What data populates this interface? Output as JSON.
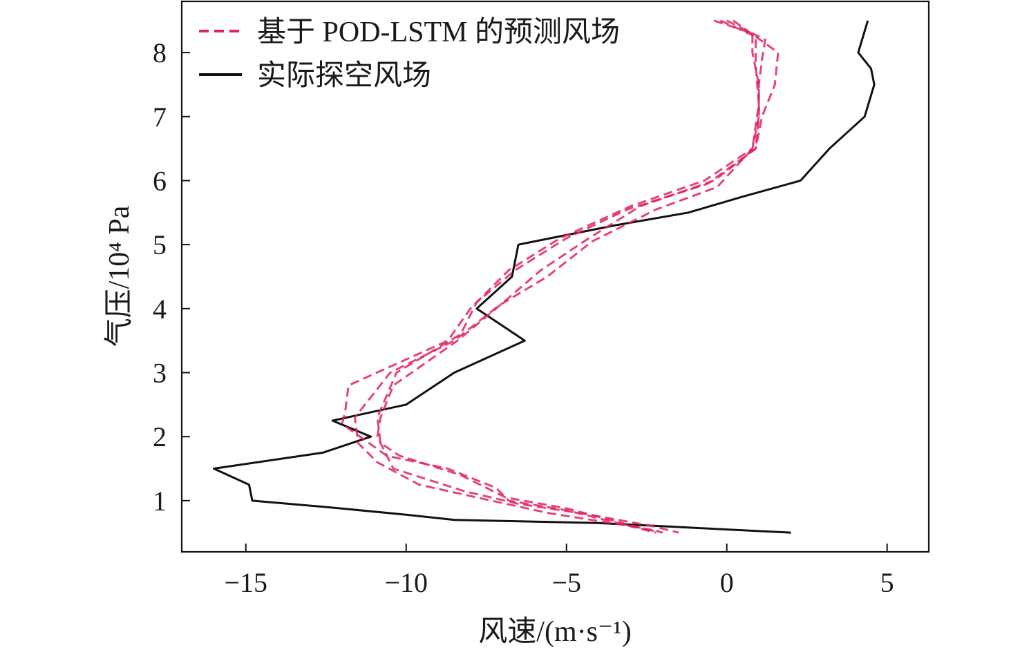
{
  "chart_data": {
    "type": "line",
    "xlabel": "风速/(m·s⁻¹)",
    "ylabel": "气压/10⁴ Pa",
    "xlim": [
      -17,
      6.3
    ],
    "ylim": [
      0.2,
      8.8
    ],
    "xticks": [
      -15,
      -10,
      -5,
      0,
      5
    ],
    "xtick_labels": [
      "−15",
      "−10",
      "−5",
      "0",
      "5"
    ],
    "yticks": [
      1,
      2,
      3,
      4,
      5,
      6,
      7,
      8
    ],
    "ytick_labels": [
      "1",
      "2",
      "3",
      "4",
      "5",
      "6",
      "7",
      "8"
    ],
    "grid": false,
    "legend_position": "top-left",
    "legend": [
      {
        "label": "基于 POD-LSTM 的预测风场",
        "style": "dashed",
        "color": "#e0245e"
      },
      {
        "label": "实际探空风场",
        "style": "solid",
        "color": "#111111"
      }
    ],
    "series": [
      {
        "name": "实际探空风场",
        "style": "solid",
        "color": "#111111",
        "points": [
          [
            4.4,
            8.5
          ],
          [
            4.1,
            8.0
          ],
          [
            4.5,
            7.75
          ],
          [
            4.6,
            7.5
          ],
          [
            4.3,
            7.0
          ],
          [
            3.2,
            6.5
          ],
          [
            2.3,
            6.0
          ],
          [
            0.5,
            5.75
          ],
          [
            -1.2,
            5.5
          ],
          [
            -3.5,
            5.3
          ],
          [
            -6.5,
            5.0
          ],
          [
            -6.7,
            4.5
          ],
          [
            -7.8,
            4.0
          ],
          [
            -6.3,
            3.5
          ],
          [
            -8.5,
            3.0
          ],
          [
            -10.0,
            2.5
          ],
          [
            -12.3,
            2.25
          ],
          [
            -11.1,
            2.0
          ],
          [
            -12.6,
            1.75
          ],
          [
            -16.0,
            1.5
          ],
          [
            -14.9,
            1.25
          ],
          [
            -14.8,
            1.0
          ],
          [
            -12.5,
            0.9
          ],
          [
            -10.0,
            0.78
          ],
          [
            -8.5,
            0.7
          ],
          [
            -4.0,
            0.65
          ],
          [
            -2.0,
            0.6
          ],
          [
            0.0,
            0.55
          ],
          [
            2.0,
            0.5
          ]
        ]
      },
      {
        "style": "dashed",
        "color": "#e0245e",
        "points": [
          [
            -0.4,
            8.5
          ],
          [
            0.8,
            8.3
          ],
          [
            0.8,
            8.0
          ],
          [
            1.0,
            7.5
          ],
          [
            1.0,
            7.0
          ],
          [
            0.8,
            6.5
          ],
          [
            -0.7,
            6.0
          ],
          [
            -3.0,
            5.6
          ],
          [
            -5.2,
            5.1
          ],
          [
            -6.8,
            4.6
          ],
          [
            -8.0,
            4.0
          ],
          [
            -8.7,
            3.5
          ],
          [
            -11.8,
            2.8
          ],
          [
            -11.9,
            2.4
          ],
          [
            -12.0,
            2.2
          ],
          [
            -10.6,
            1.7
          ],
          [
            -8.7,
            1.5
          ],
          [
            -7.2,
            1.2
          ],
          [
            -6.8,
            1.0
          ],
          [
            -5.0,
            0.85
          ],
          [
            -2.2,
            0.5
          ]
        ]
      },
      {
        "style": "dashed",
        "color": "#e0245e",
        "points": [
          [
            0.0,
            8.5
          ],
          [
            1.2,
            8.2
          ],
          [
            1.1,
            7.9
          ],
          [
            1.0,
            7.5
          ],
          [
            1.0,
            7.0
          ],
          [
            0.9,
            6.5
          ],
          [
            -0.6,
            5.95
          ],
          [
            -3.1,
            5.55
          ],
          [
            -5.0,
            5.1
          ],
          [
            -6.6,
            4.6
          ],
          [
            -7.8,
            4.1
          ],
          [
            -8.3,
            3.6
          ],
          [
            -10.3,
            3.0
          ],
          [
            -10.9,
            2.3
          ],
          [
            -10.8,
            1.9
          ],
          [
            -10.2,
            1.7
          ],
          [
            -8.3,
            1.4
          ],
          [
            -7.5,
            1.2
          ],
          [
            -6.9,
            1.05
          ],
          [
            -5.0,
            0.88
          ],
          [
            -2.5,
            0.55
          ],
          [
            -2.0,
            0.5
          ]
        ]
      },
      {
        "style": "dashed",
        "color": "#e0245e",
        "points": [
          [
            0.2,
            8.5
          ],
          [
            1.6,
            8.0
          ],
          [
            1.5,
            7.5
          ],
          [
            1.1,
            7.0
          ],
          [
            0.9,
            6.5
          ],
          [
            -0.4,
            6.0
          ],
          [
            -2.7,
            5.6
          ],
          [
            -4.3,
            5.1
          ],
          [
            -5.8,
            4.6
          ],
          [
            -7.2,
            4.0
          ],
          [
            -8.4,
            3.5
          ],
          [
            -10.4,
            2.8
          ],
          [
            -10.8,
            2.3
          ],
          [
            -10.9,
            2.0
          ],
          [
            -10.4,
            1.5
          ],
          [
            -8.2,
            1.15
          ],
          [
            -6.5,
            0.95
          ],
          [
            -4.5,
            0.8
          ],
          [
            -2.3,
            0.6
          ],
          [
            -1.5,
            0.5
          ]
        ]
      },
      {
        "style": "dashed",
        "color": "#e0245e",
        "points": [
          [
            -0.2,
            8.5
          ],
          [
            0.9,
            8.25
          ],
          [
            0.9,
            7.8
          ],
          [
            1.0,
            7.2
          ],
          [
            0.8,
            6.5
          ],
          [
            -0.3,
            5.9
          ],
          [
            -2.2,
            5.55
          ],
          [
            -4.2,
            5.05
          ],
          [
            -5.6,
            4.5
          ],
          [
            -7.1,
            4.05
          ],
          [
            -8.5,
            3.5
          ],
          [
            -10.5,
            3.0
          ],
          [
            -11.6,
            2.3
          ],
          [
            -11.5,
            1.9
          ],
          [
            -10.9,
            1.6
          ],
          [
            -9.6,
            1.25
          ],
          [
            -7.8,
            1.05
          ],
          [
            -5.5,
            0.8
          ],
          [
            -3.2,
            0.62
          ],
          [
            -2.1,
            0.52
          ]
        ]
      }
    ]
  }
}
